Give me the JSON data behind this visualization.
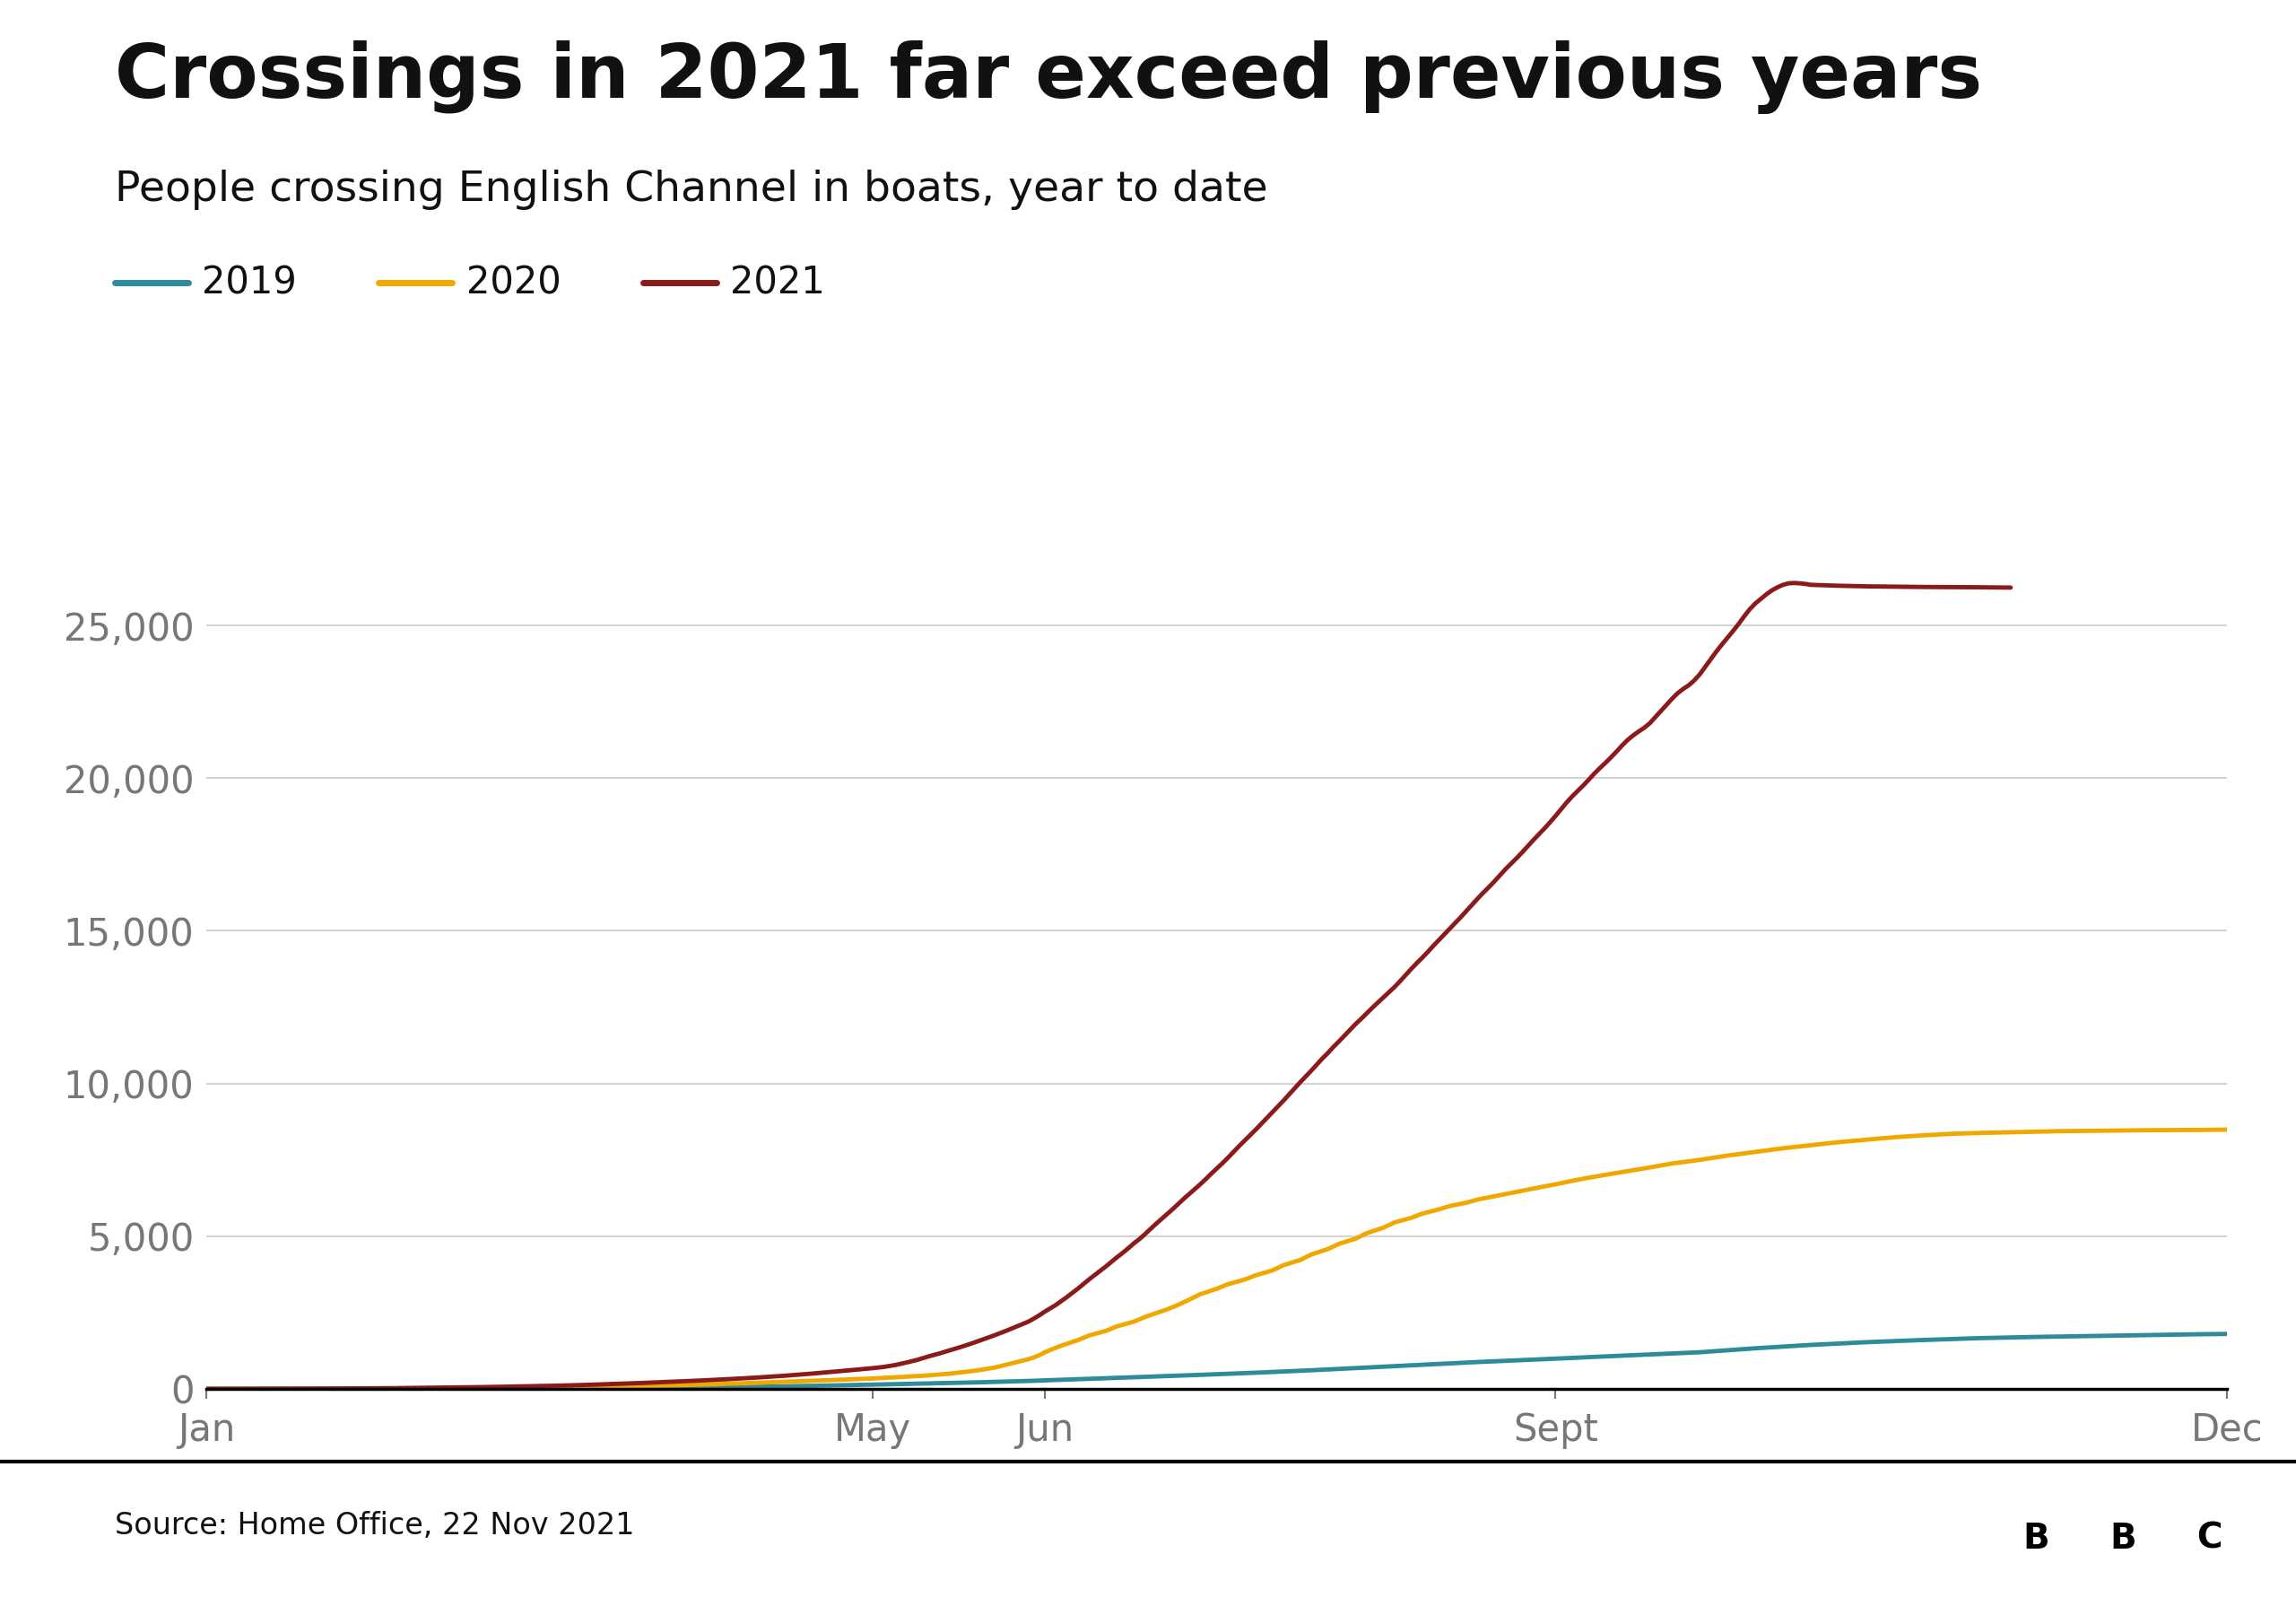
{
  "title": "Crossings in 2021 far exceed previous years",
  "subtitle": "People crossing English Channel in boats, year to date",
  "source": "Source: Home Office, 22 Nov 2021",
  "line_2019_color": "#2E8B9A",
  "line_2020_color": "#F0A800",
  "line_2021_color": "#8B1A1A",
  "background_color": "#ffffff",
  "ylim": [
    0,
    27500
  ],
  "yticks": [
    0,
    5000,
    10000,
    15000,
    20000,
    25000
  ],
  "xtick_labels": [
    "Jan",
    "May",
    "Jun",
    "Sept",
    "Dec"
  ],
  "xtick_positions": [
    1,
    121,
    152,
    244,
    365
  ],
  "legend_labels": [
    "2019",
    "2020",
    "2021"
  ],
  "data_2019": [
    [
      1,
      0
    ],
    [
      10,
      0
    ],
    [
      20,
      2
    ],
    [
      30,
      5
    ],
    [
      40,
      8
    ],
    [
      50,
      12
    ],
    [
      60,
      18
    ],
    [
      70,
      25
    ],
    [
      80,
      35
    ],
    [
      90,
      50
    ],
    [
      100,
      70
    ],
    [
      110,
      100
    ],
    [
      121,
      140
    ],
    [
      130,
      175
    ],
    [
      140,
      215
    ],
    [
      150,
      265
    ],
    [
      152,
      280
    ],
    [
      160,
      330
    ],
    [
      170,
      395
    ],
    [
      180,
      460
    ],
    [
      190,
      530
    ],
    [
      200,
      610
    ],
    [
      210,
      700
    ],
    [
      220,
      790
    ],
    [
      230,
      880
    ],
    [
      244,
      990
    ],
    [
      250,
      1040
    ],
    [
      260,
      1120
    ],
    [
      270,
      1200
    ],
    [
      280,
      1330
    ],
    [
      290,
      1440
    ],
    [
      300,
      1530
    ],
    [
      310,
      1600
    ],
    [
      320,
      1660
    ],
    [
      330,
      1700
    ],
    [
      340,
      1730
    ],
    [
      350,
      1760
    ],
    [
      360,
      1790
    ],
    [
      365,
      1800
    ]
  ],
  "data_2020": [
    [
      1,
      0
    ],
    [
      10,
      2
    ],
    [
      20,
      5
    ],
    [
      30,
      10
    ],
    [
      40,
      18
    ],
    [
      50,
      28
    ],
    [
      60,
      42
    ],
    [
      70,
      65
    ],
    [
      80,
      95
    ],
    [
      90,
      140
    ],
    [
      100,
      200
    ],
    [
      110,
      265
    ],
    [
      121,
      340
    ],
    [
      125,
      380
    ],
    [
      130,
      430
    ],
    [
      135,
      500
    ],
    [
      140,
      610
    ],
    [
      143,
      700
    ],
    [
      145,
      790
    ],
    [
      147,
      880
    ],
    [
      149,
      970
    ],
    [
      150,
      1030
    ],
    [
      151,
      1100
    ],
    [
      152,
      1200
    ],
    [
      154,
      1350
    ],
    [
      156,
      1480
    ],
    [
      158,
      1600
    ],
    [
      160,
      1750
    ],
    [
      163,
      1900
    ],
    [
      165,
      2050
    ],
    [
      168,
      2200
    ],
    [
      170,
      2350
    ],
    [
      172,
      2480
    ],
    [
      174,
      2600
    ],
    [
      176,
      2750
    ],
    [
      178,
      2920
    ],
    [
      180,
      3100
    ],
    [
      183,
      3280
    ],
    [
      185,
      3430
    ],
    [
      188,
      3580
    ],
    [
      190,
      3720
    ],
    [
      193,
      3880
    ],
    [
      195,
      4050
    ],
    [
      198,
      4220
    ],
    [
      200,
      4400
    ],
    [
      203,
      4580
    ],
    [
      205,
      4750
    ],
    [
      208,
      4920
    ],
    [
      210,
      5100
    ],
    [
      213,
      5280
    ],
    [
      215,
      5450
    ],
    [
      218,
      5600
    ],
    [
      220,
      5740
    ],
    [
      223,
      5880
    ],
    [
      225,
      5990
    ],
    [
      228,
      6100
    ],
    [
      230,
      6200
    ],
    [
      235,
      6380
    ],
    [
      240,
      6560
    ],
    [
      244,
      6700
    ],
    [
      248,
      6850
    ],
    [
      252,
      6980
    ],
    [
      256,
      7100
    ],
    [
      260,
      7220
    ],
    [
      265,
      7380
    ],
    [
      270,
      7500
    ],
    [
      275,
      7640
    ],
    [
      280,
      7760
    ],
    [
      285,
      7880
    ],
    [
      290,
      7980
    ],
    [
      295,
      8080
    ],
    [
      300,
      8160
    ],
    [
      305,
      8240
    ],
    [
      310,
      8300
    ],
    [
      315,
      8350
    ],
    [
      320,
      8380
    ],
    [
      325,
      8400
    ],
    [
      330,
      8420
    ],
    [
      335,
      8440
    ],
    [
      340,
      8450
    ],
    [
      345,
      8460
    ],
    [
      350,
      8470
    ],
    [
      355,
      8475
    ],
    [
      360,
      8480
    ],
    [
      365,
      8490
    ]
  ],
  "data_2021": [
    [
      1,
      0
    ],
    [
      5,
      0
    ],
    [
      10,
      2
    ],
    [
      15,
      5
    ],
    [
      20,
      8
    ],
    [
      25,
      12
    ],
    [
      30,
      18
    ],
    [
      35,
      25
    ],
    [
      40,
      35
    ],
    [
      45,
      45
    ],
    [
      50,
      58
    ],
    [
      55,
      72
    ],
    [
      60,
      90
    ],
    [
      65,
      110
    ],
    [
      70,
      135
    ],
    [
      75,
      165
    ],
    [
      80,
      198
    ],
    [
      85,
      235
    ],
    [
      90,
      275
    ],
    [
      95,
      320
    ],
    [
      100,
      370
    ],
    [
      105,
      430
    ],
    [
      110,
      500
    ],
    [
      115,
      580
    ],
    [
      121,
      680
    ],
    [
      123,
      720
    ],
    [
      125,
      780
    ],
    [
      127,
      860
    ],
    [
      129,
      950
    ],
    [
      131,
      1060
    ],
    [
      133,
      1160
    ],
    [
      135,
      1270
    ],
    [
      137,
      1380
    ],
    [
      139,
      1500
    ],
    [
      141,
      1630
    ],
    [
      143,
      1760
    ],
    [
      145,
      1900
    ],
    [
      147,
      2050
    ],
    [
      149,
      2200
    ],
    [
      150,
      2300
    ],
    [
      151,
      2410
    ],
    [
      152,
      2530
    ],
    [
      153,
      2640
    ],
    [
      154,
      2750
    ],
    [
      155,
      2880
    ],
    [
      156,
      3010
    ],
    [
      157,
      3150
    ],
    [
      158,
      3290
    ],
    [
      159,
      3440
    ],
    [
      160,
      3590
    ],
    [
      161,
      3730
    ],
    [
      162,
      3870
    ],
    [
      163,
      4010
    ],
    [
      164,
      4160
    ],
    [
      165,
      4310
    ],
    [
      166,
      4450
    ],
    [
      167,
      4600
    ],
    [
      168,
      4760
    ],
    [
      169,
      4900
    ],
    [
      170,
      5060
    ],
    [
      171,
      5230
    ],
    [
      172,
      5400
    ],
    [
      173,
      5560
    ],
    [
      174,
      5720
    ],
    [
      175,
      5880
    ],
    [
      176,
      6050
    ],
    [
      177,
      6220
    ],
    [
      178,
      6380
    ],
    [
      179,
      6540
    ],
    [
      180,
      6700
    ],
    [
      181,
      6870
    ],
    [
      182,
      7050
    ],
    [
      183,
      7220
    ],
    [
      184,
      7390
    ],
    [
      185,
      7570
    ],
    [
      186,
      7760
    ],
    [
      187,
      7950
    ],
    [
      188,
      8130
    ],
    [
      189,
      8310
    ],
    [
      190,
      8490
    ],
    [
      191,
      8680
    ],
    [
      192,
      8870
    ],
    [
      193,
      9060
    ],
    [
      194,
      9250
    ],
    [
      195,
      9440
    ],
    [
      196,
      9640
    ],
    [
      197,
      9840
    ],
    [
      198,
      10040
    ],
    [
      199,
      10230
    ],
    [
      200,
      10420
    ],
    [
      201,
      10620
    ],
    [
      202,
      10820
    ],
    [
      203,
      11000
    ],
    [
      204,
      11200
    ],
    [
      205,
      11380
    ],
    [
      206,
      11570
    ],
    [
      207,
      11760
    ],
    [
      208,
      11950
    ],
    [
      209,
      12120
    ],
    [
      210,
      12300
    ],
    [
      211,
      12480
    ],
    [
      212,
      12650
    ],
    [
      213,
      12820
    ],
    [
      214,
      12990
    ],
    [
      215,
      13160
    ],
    [
      216,
      13350
    ],
    [
      217,
      13550
    ],
    [
      218,
      13750
    ],
    [
      219,
      13940
    ],
    [
      220,
      14120
    ],
    [
      221,
      14310
    ],
    [
      222,
      14510
    ],
    [
      223,
      14700
    ],
    [
      224,
      14890
    ],
    [
      225,
      15080
    ],
    [
      226,
      15270
    ],
    [
      227,
      15460
    ],
    [
      228,
      15660
    ],
    [
      229,
      15860
    ],
    [
      230,
      16060
    ],
    [
      231,
      16250
    ],
    [
      232,
      16430
    ],
    [
      233,
      16620
    ],
    [
      234,
      16820
    ],
    [
      235,
      17020
    ],
    [
      236,
      17200
    ],
    [
      237,
      17380
    ],
    [
      238,
      17570
    ],
    [
      239,
      17770
    ],
    [
      240,
      17970
    ],
    [
      241,
      18160
    ],
    [
      242,
      18350
    ],
    [
      243,
      18550
    ],
    [
      244,
      18760
    ],
    [
      245,
      18980
    ],
    [
      246,
      19200
    ],
    [
      247,
      19400
    ],
    [
      248,
      19580
    ],
    [
      249,
      19760
    ],
    [
      250,
      19950
    ],
    [
      251,
      20150
    ],
    [
      252,
      20330
    ],
    [
      253,
      20500
    ],
    [
      254,
      20680
    ],
    [
      255,
      20870
    ],
    [
      256,
      21070
    ],
    [
      257,
      21250
    ],
    [
      258,
      21400
    ],
    [
      259,
      21530
    ],
    [
      260,
      21650
    ],
    [
      261,
      21800
    ],
    [
      262,
      22000
    ],
    [
      263,
      22200
    ],
    [
      264,
      22400
    ],
    [
      265,
      22600
    ],
    [
      266,
      22780
    ],
    [
      267,
      22920
    ],
    [
      268,
      23040
    ],
    [
      269,
      23200
    ],
    [
      270,
      23400
    ],
    [
      271,
      23650
    ],
    [
      272,
      23900
    ],
    [
      273,
      24150
    ],
    [
      274,
      24380
    ],
    [
      275,
      24600
    ],
    [
      276,
      24820
    ],
    [
      277,
      25050
    ],
    [
      278,
      25300
    ],
    [
      279,
      25530
    ],
    [
      280,
      25720
    ],
    [
      281,
      25870
    ],
    [
      282,
      26020
    ],
    [
      283,
      26150
    ],
    [
      284,
      26250
    ],
    [
      285,
      26330
    ],
    [
      286,
      26380
    ],
    [
      287,
      26390
    ],
    [
      288,
      26380
    ],
    [
      289,
      26360
    ],
    [
      290,
      26330
    ],
    [
      295,
      26300
    ],
    [
      300,
      26280
    ],
    [
      310,
      26260
    ],
    [
      320,
      26250
    ],
    [
      326,
      26240
    ]
  ]
}
